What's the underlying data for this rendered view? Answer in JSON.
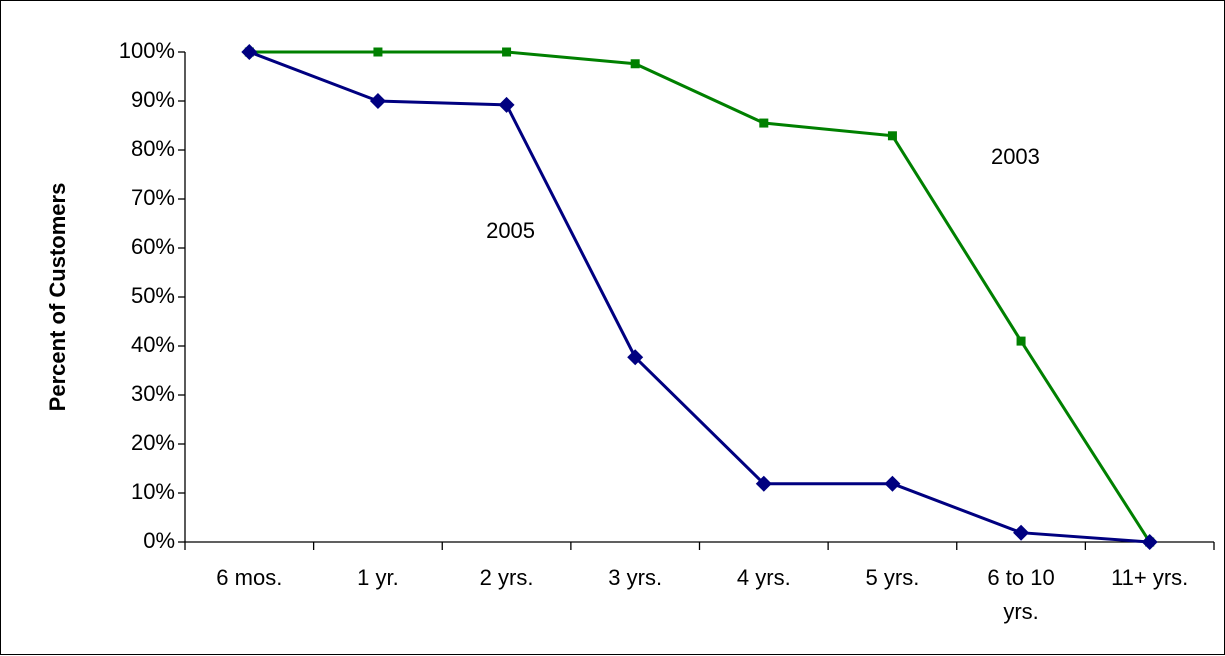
{
  "chart_data": {
    "type": "line",
    "title": "",
    "xlabel": "",
    "ylabel": "Percent of Customers",
    "categories": [
      [
        "6 mos."
      ],
      [
        "1 yr."
      ],
      [
        "2 yrs."
      ],
      [
        "3 yrs."
      ],
      [
        "4 yrs."
      ],
      [
        "5 yrs."
      ],
      [
        "6 to 10",
        "yrs."
      ],
      [
        "11+ yrs."
      ]
    ],
    "ylim": [
      0,
      100
    ],
    "yticks": [
      {
        "value": 0,
        "label": "0%"
      },
      {
        "value": 10,
        "label": "10%"
      },
      {
        "value": 20,
        "label": "20%"
      },
      {
        "value": 30,
        "label": "30%"
      },
      {
        "value": 40,
        "label": "40%"
      },
      {
        "value": 50,
        "label": "50%"
      },
      {
        "value": 60,
        "label": "60%"
      },
      {
        "value": 70,
        "label": "70%"
      },
      {
        "value": 80,
        "label": "80%"
      },
      {
        "value": 90,
        "label": "90%"
      },
      {
        "value": 100,
        "label": "100%"
      }
    ],
    "grid": false,
    "legend": "none",
    "series": [
      {
        "name": "2003",
        "values": [
          100,
          100,
          100,
          97.6,
          85.5,
          82.9,
          41,
          0
        ],
        "color": "#008000",
        "marker": "square"
      },
      {
        "name": "2005",
        "values": [
          100,
          90,
          89.2,
          37.7,
          11.9,
          11.9,
          1.9,
          0
        ],
        "color": "#000080",
        "marker": "diamond"
      }
    ],
    "annotations": [
      {
        "text": "2003",
        "series": "2003",
        "anchor_category": 5
      },
      {
        "text": "2005",
        "series": "2005",
        "anchor_category": 2
      }
    ]
  }
}
